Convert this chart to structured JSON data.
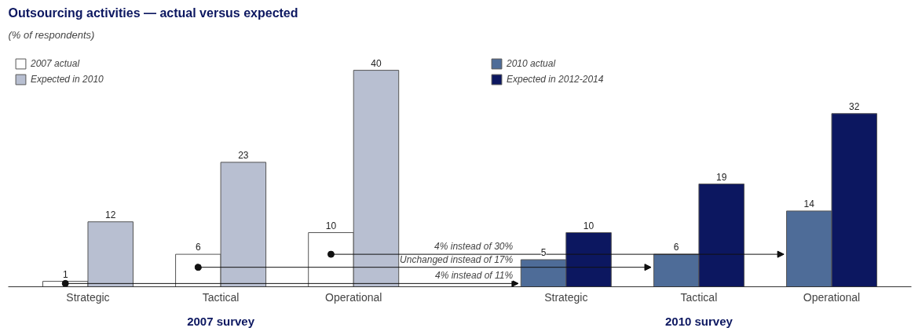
{
  "chart_data": {
    "type": "bar",
    "title": "Outsourcing activities — actual versus expected",
    "subtitle": "(% of respondents)",
    "categories": [
      "Strategic",
      "Tactical",
      "Operational",
      "Strategic",
      "Tactical",
      "Operational"
    ],
    "series": [
      {
        "name": "2007 actual",
        "color": "#ffffff",
        "values": [
          1,
          6,
          10,
          null,
          null,
          null
        ]
      },
      {
        "name": "Expected in 2010",
        "color": "#b8bfd1",
        "values": [
          12,
          23,
          40,
          null,
          null,
          null
        ]
      },
      {
        "name": "2010 actual",
        "color": "#4e6c98",
        "values": [
          null,
          null,
          null,
          5,
          6,
          14
        ]
      },
      {
        "name": "Expected in 2012-2014",
        "color": "#0c1760",
        "values": [
          null,
          null,
          null,
          10,
          19,
          32
        ]
      }
    ],
    "annotations": [
      "4% instead of 11%",
      "Unchanged instead of 17%",
      "4% instead of 30%",
      "2007 survey",
      "2010 survey"
    ],
    "data_labels": true,
    "legend": "top",
    "grid": false
  }
}
